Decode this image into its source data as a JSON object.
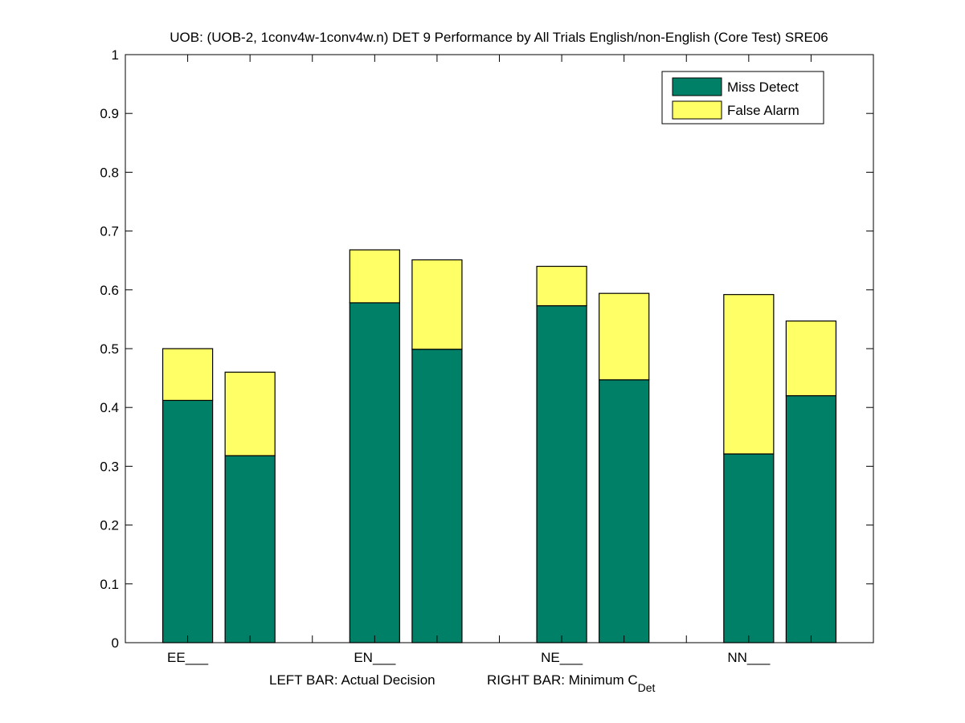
{
  "chart_data": {
    "type": "bar",
    "stacked": true,
    "title": "UOB: (UOB-2, 1conv4w-1conv4w.n) DET 9 Performance by All Trials English/non-English (Core Test) SRE06",
    "xlabel_left": "LEFT BAR: Actual Decision",
    "xlabel_right_main": "RIGHT BAR: Minimum C",
    "xlabel_right_sub": "Det",
    "ylabel": "",
    "ylim": [
      0,
      1
    ],
    "xlim": [
      0,
      12
    ],
    "yticks": [
      "0",
      "0.1",
      "0.2",
      "0.3",
      "0.4",
      "0.5",
      "0.6",
      "0.7",
      "0.8",
      "0.9",
      "1"
    ],
    "ytick_values": [
      0,
      0.1,
      0.2,
      0.3,
      0.4,
      0.5,
      0.6,
      0.7,
      0.8,
      0.9,
      1
    ],
    "xtick_positions": [
      1,
      2,
      3,
      4,
      5,
      6,
      7,
      8,
      9,
      10,
      11
    ],
    "categories": [
      "EE___",
      "EN___",
      "NE___",
      "NN___"
    ],
    "category_positions": [
      1,
      4,
      7,
      10
    ],
    "bars": [
      {
        "category": "EE___",
        "which": "Actual Decision",
        "x": 1,
        "miss": 0.412,
        "false_alarm": 0.088
      },
      {
        "category": "EE___",
        "which": "Minimum CDet",
        "x": 2,
        "miss": 0.318,
        "false_alarm": 0.142
      },
      {
        "category": "EN___",
        "which": "Actual Decision",
        "x": 4,
        "miss": 0.578,
        "false_alarm": 0.09
      },
      {
        "category": "EN___",
        "which": "Minimum CDet",
        "x": 5,
        "miss": 0.499,
        "false_alarm": 0.152
      },
      {
        "category": "NE___",
        "which": "Actual Decision",
        "x": 7,
        "miss": 0.573,
        "false_alarm": 0.067
      },
      {
        "category": "NE___",
        "which": "Minimum CDet",
        "x": 8,
        "miss": 0.447,
        "false_alarm": 0.147
      },
      {
        "category": "NN___",
        "which": "Actual Decision",
        "x": 10,
        "miss": 0.321,
        "false_alarm": 0.271
      },
      {
        "category": "NN___",
        "which": "Minimum CDet",
        "x": 11,
        "miss": 0.42,
        "false_alarm": 0.127
      }
    ],
    "series": [
      {
        "name": "Miss Detect",
        "color": "#008066"
      },
      {
        "name": "False Alarm",
        "color": "#ffff66"
      }
    ],
    "legend": {
      "position": "top-right",
      "entries": [
        "Miss Detect",
        "False Alarm"
      ]
    },
    "grid": false
  }
}
